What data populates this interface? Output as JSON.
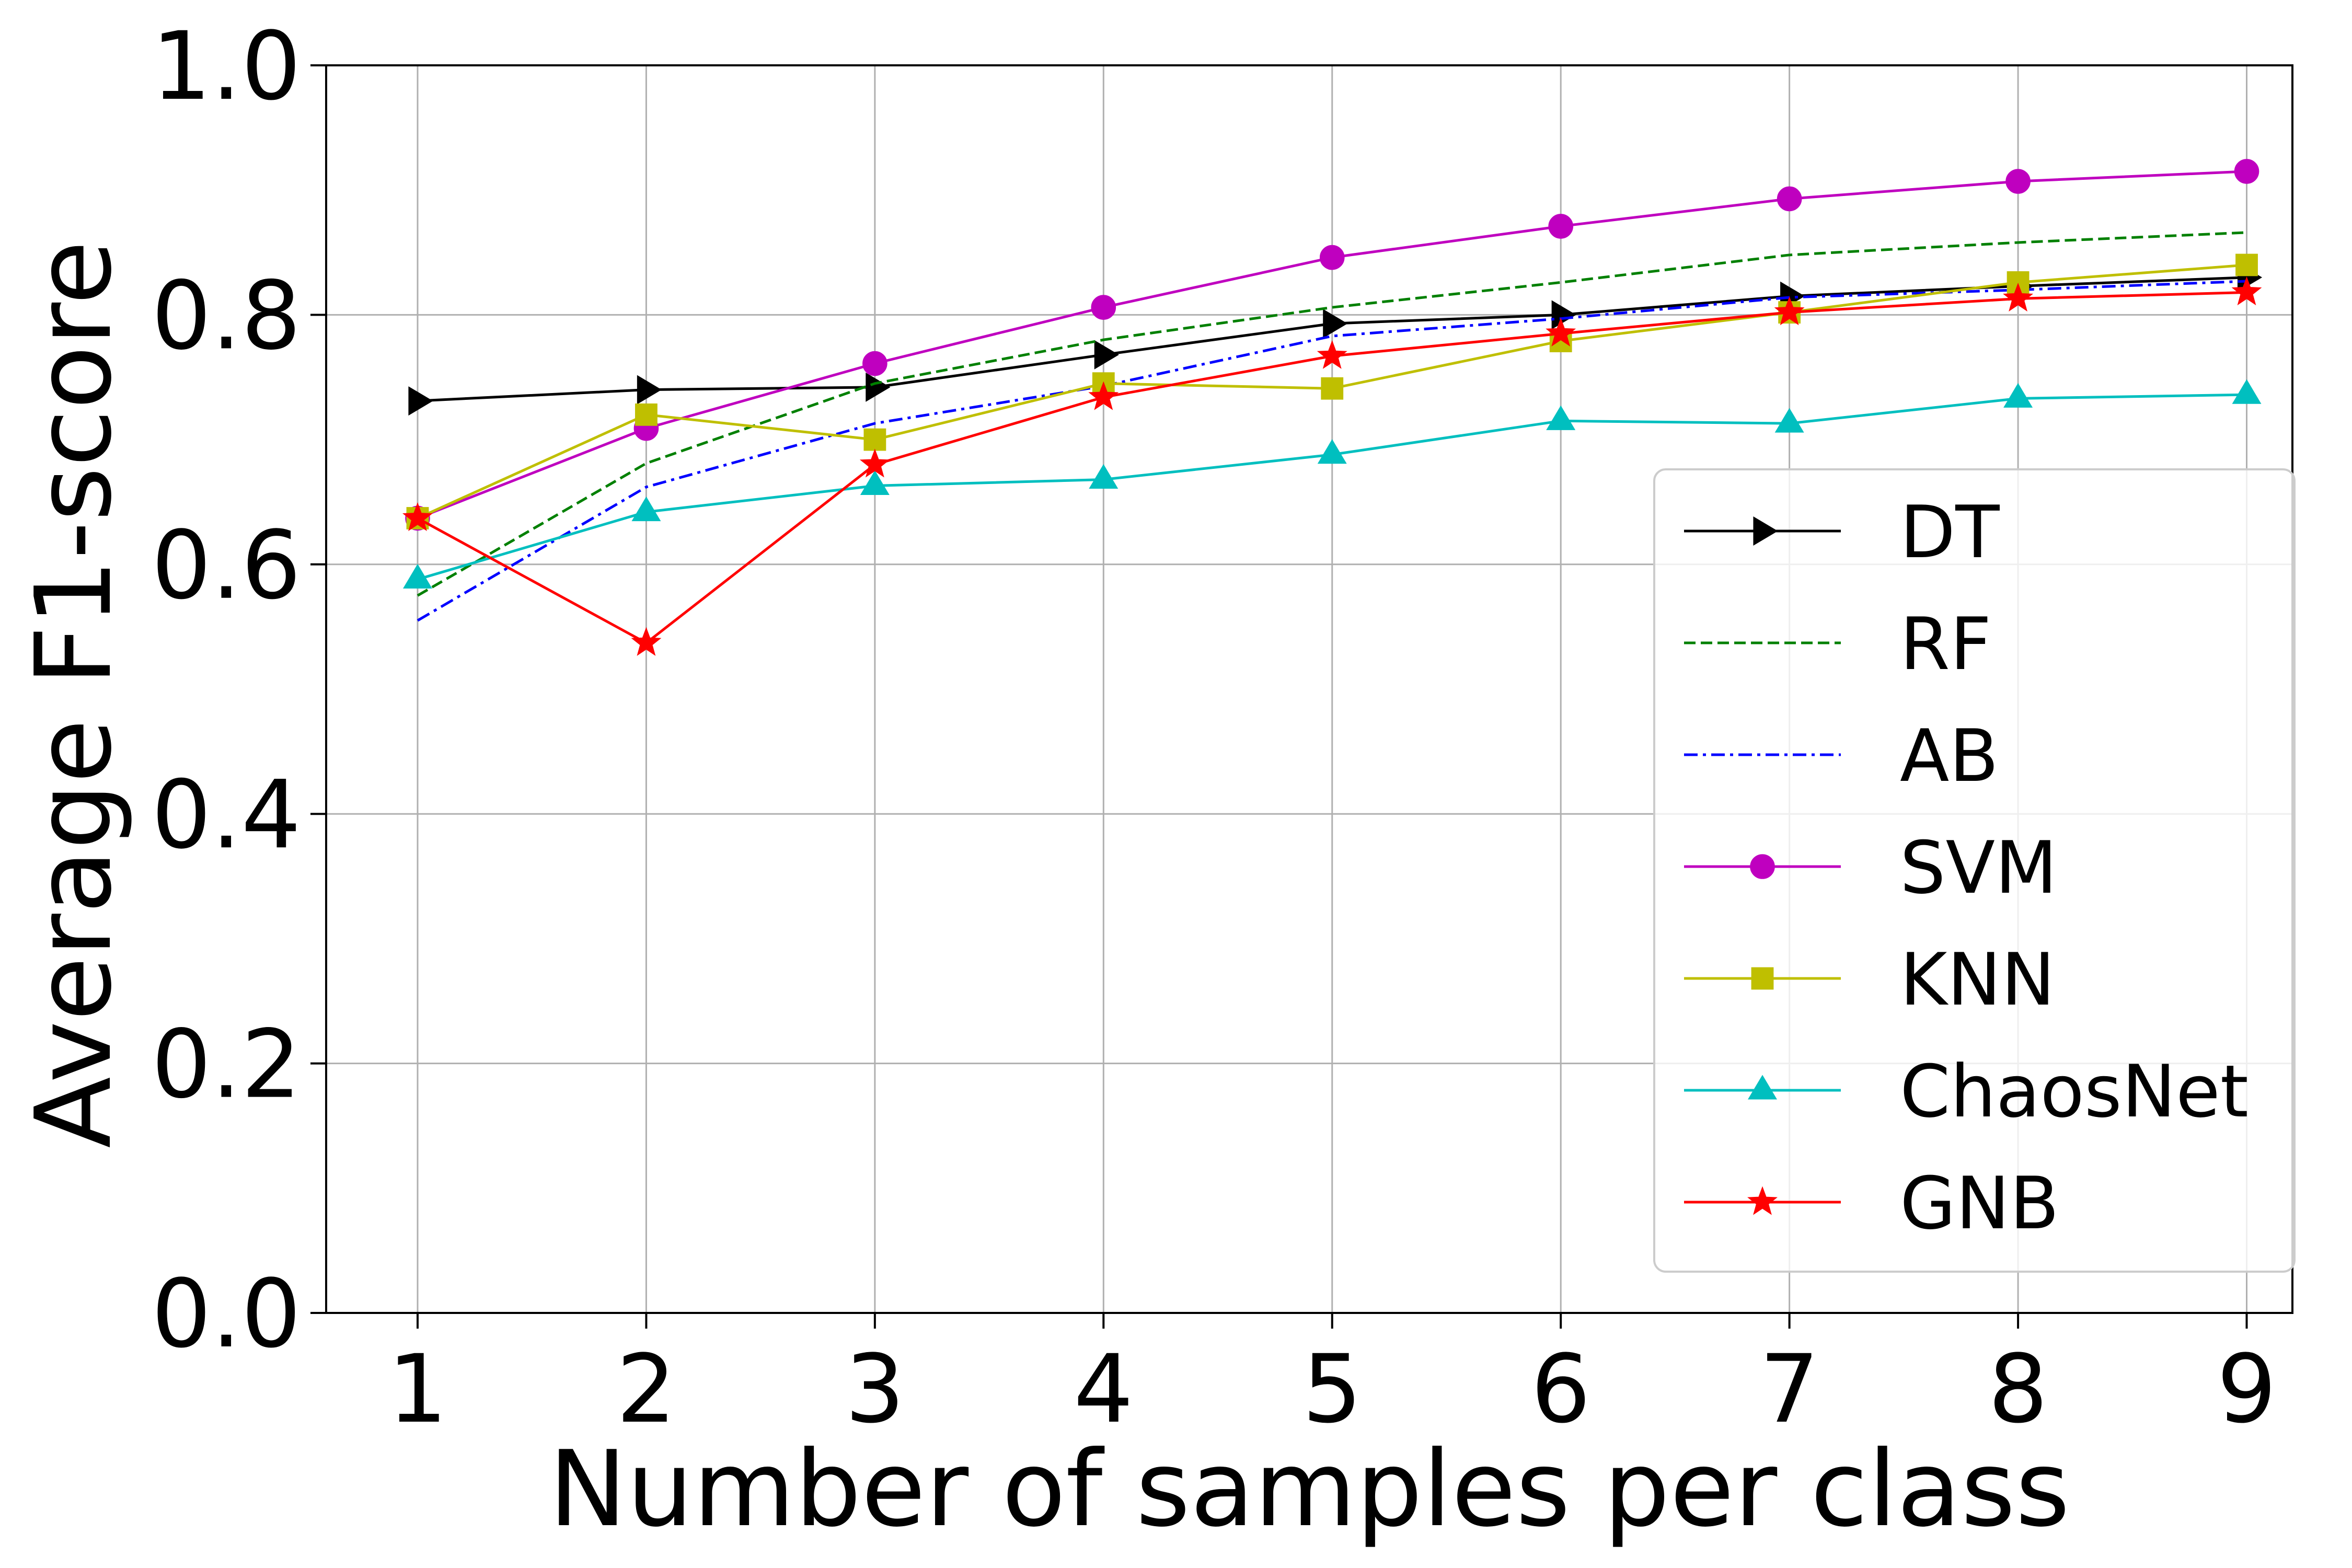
{
  "chart_data": {
    "type": "line",
    "title": "",
    "xlabel": "Number of samples per class",
    "ylabel": "Average F1-score",
    "x": [
      1,
      2,
      3,
      4,
      5,
      6,
      7,
      8,
      9
    ],
    "xlim": [
      0.6,
      9.2
    ],
    "ylim": [
      0.0,
      1.0
    ],
    "xticks": [
      "1",
      "2",
      "3",
      "4",
      "5",
      "6",
      "7",
      "8",
      "9"
    ],
    "yticks": [
      "0.0",
      "0.2",
      "0.4",
      "0.6",
      "0.8",
      "1.0"
    ],
    "grid": true,
    "legend_position": "lower-right",
    "series": [
      {
        "name": "DT",
        "color": "#000000",
        "dash": "solid",
        "marker": "triangle-right",
        "values": [
          0.731,
          0.74,
          0.742,
          0.768,
          0.793,
          0.8,
          0.815,
          0.823,
          0.83
        ]
      },
      {
        "name": "RF",
        "color": "#008000",
        "dash": "dashed",
        "marker": "none",
        "values": [
          0.575,
          0.681,
          0.745,
          0.78,
          0.806,
          0.826,
          0.848,
          0.858,
          0.866
        ]
      },
      {
        "name": "AB",
        "color": "#0000ff",
        "dash": "dashdot",
        "marker": "none",
        "values": [
          0.555,
          0.662,
          0.713,
          0.743,
          0.783,
          0.797,
          0.814,
          0.82,
          0.827
        ]
      },
      {
        "name": "SVM",
        "color": "#bf00bf",
        "dash": "solid",
        "marker": "circle",
        "values": [
          0.637,
          0.709,
          0.761,
          0.806,
          0.846,
          0.871,
          0.893,
          0.907,
          0.915
        ]
      },
      {
        "name": "KNN",
        "color": "#bfbf00",
        "dash": "solid",
        "marker": "square",
        "values": [
          0.637,
          0.72,
          0.7,
          0.745,
          0.741,
          0.779,
          0.802,
          0.826,
          0.84
        ]
      },
      {
        "name": "ChaosNet",
        "color": "#00bfbf",
        "dash": "solid",
        "marker": "triangle-up",
        "values": [
          0.588,
          0.642,
          0.663,
          0.668,
          0.688,
          0.715,
          0.713,
          0.733,
          0.736
        ]
      },
      {
        "name": "GNB",
        "color": "#ff0000",
        "dash": "solid",
        "marker": "star",
        "values": [
          0.637,
          0.537,
          0.68,
          0.734,
          0.767,
          0.785,
          0.802,
          0.813,
          0.818
        ]
      }
    ]
  }
}
